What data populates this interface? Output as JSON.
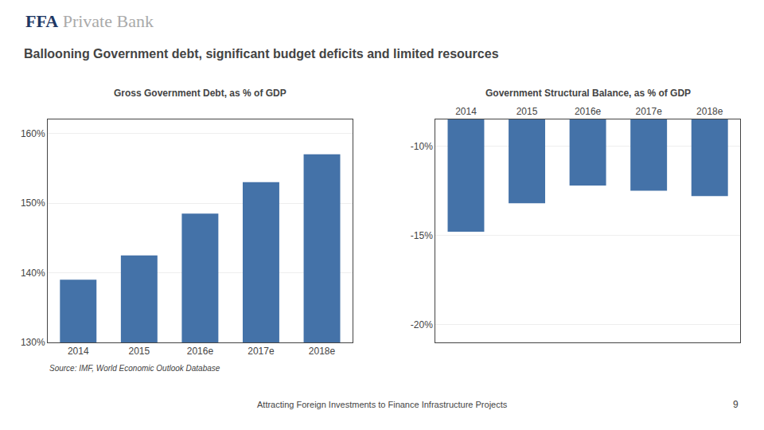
{
  "header": [
    {
      "text": "FFA",
      "color": "#1F3864"
    },
    {
      "text": "Private Bank",
      "color": "#AAAAAA"
    }
  ],
  "title": "Ballooning Government debt, significant budget deficits and limited resources",
  "source": "Source: IMF, World Economic Outlook Database",
  "footer": "Attracting Foreign Investments to Finance Infrastructure Projects",
  "page_number": "9",
  "chart_data": [
    {
      "type": "bar",
      "title": "Gross Government Debt, as % of GDP",
      "categories": [
        "2014",
        "2015",
        "2016e",
        "2017e",
        "2018e"
      ],
      "values": [
        139.0,
        142.5,
        148.5,
        153.0,
        157.0
      ],
      "color": "#4472A8",
      "ylim": [
        130,
        162
      ],
      "yticks": [
        {
          "value": 130,
          "label": "130%"
        },
        {
          "value": 140,
          "label": "140%"
        },
        {
          "value": 150,
          "label": "150%"
        },
        {
          "value": 160,
          "label": "160%"
        }
      ],
      "grid": true
    },
    {
      "type": "bar",
      "title": "Government Structural Balance, as % of GDP",
      "categories": [
        "2014",
        "2015",
        "2016e",
        "2017e",
        "2018e"
      ],
      "values": [
        -14.8,
        -13.2,
        -12.2,
        -12.5,
        -12.8
      ],
      "color": "#4472A8",
      "ylim": [
        -21,
        -8.5
      ],
      "yticks": [
        {
          "value": -20,
          "label": "-20%"
        },
        {
          "value": -15,
          "label": "-15%"
        },
        {
          "value": -10,
          "label": "-10%"
        }
      ],
      "grid": true
    }
  ]
}
